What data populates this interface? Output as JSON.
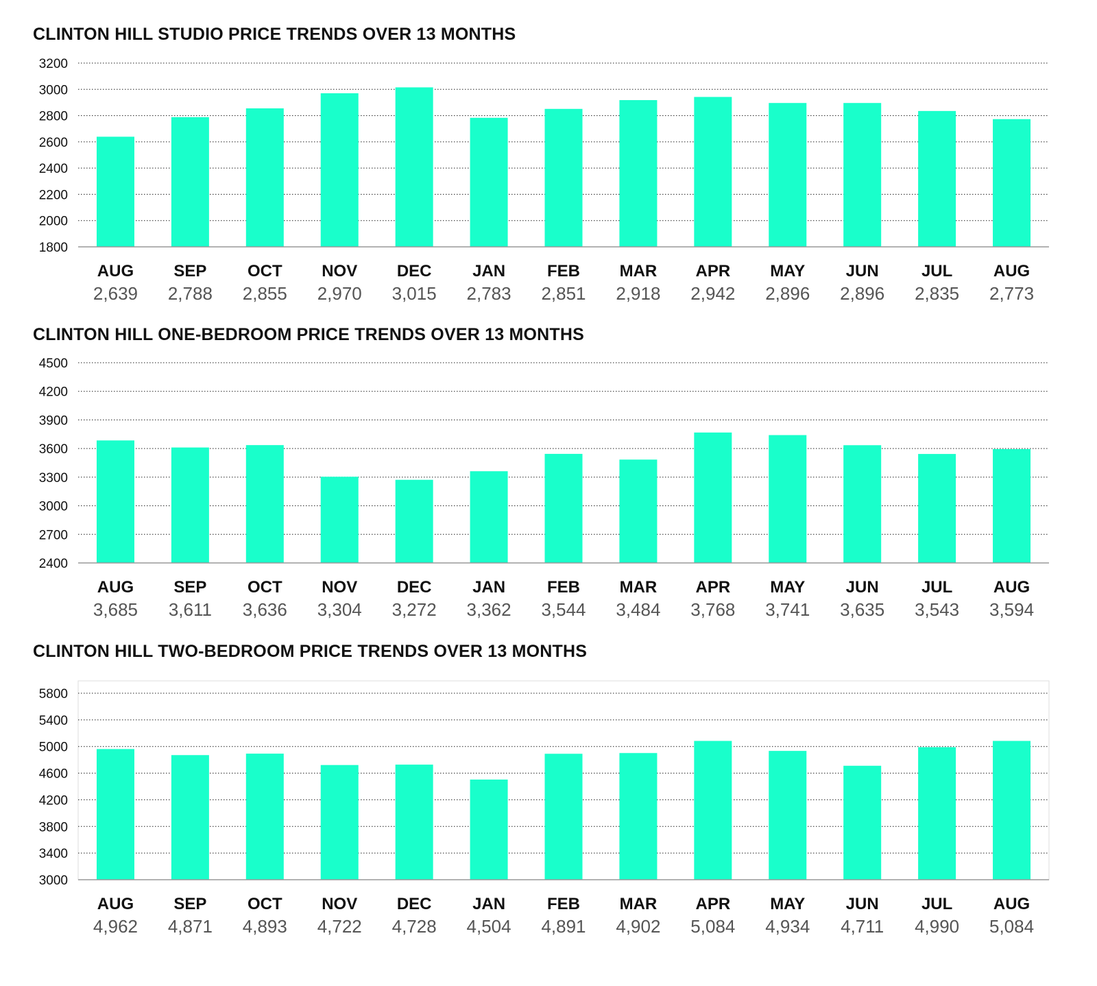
{
  "colors": {
    "bar": "#19FFCB",
    "grid": "#222222",
    "axis": "#999999",
    "frame": "#dddddd"
  },
  "chart_data": [
    {
      "type": "bar",
      "title": "CLINTON HILL STUDIO PRICE TRENDS OVER 13 MONTHS",
      "xlabel": "",
      "ylabel": "",
      "ylim": [
        1800,
        3200
      ],
      "yticks": [
        1800,
        2000,
        2200,
        2400,
        2600,
        2800,
        3000,
        3200
      ],
      "categories": [
        "AUG",
        "SEP",
        "OCT",
        "NOV",
        "DEC",
        "JAN",
        "FEB",
        "MAR",
        "APR",
        "MAY",
        "JUN",
        "JUL",
        "AUG"
      ],
      "values": [
        2639,
        2788,
        2855,
        2970,
        3015,
        2783,
        2851,
        2918,
        2942,
        2896,
        2896,
        2835,
        2773
      ],
      "value_labels": [
        "2,639",
        "2,788",
        "2,855",
        "2,970",
        "3,015",
        "2,783",
        "2,851",
        "2,918",
        "2,942",
        "2,896",
        "2,896",
        "2,835",
        "2,773"
      ],
      "grid": true,
      "legend": "none"
    },
    {
      "type": "bar",
      "title": "CLINTON HILL ONE-BEDROOM PRICE TRENDS OVER 13 MONTHS",
      "xlabel": "",
      "ylabel": "",
      "ylim": [
        2400,
        4500
      ],
      "yticks": [
        2400,
        2700,
        3000,
        3300,
        3600,
        3900,
        4200,
        4500
      ],
      "categories": [
        "AUG",
        "SEP",
        "OCT",
        "NOV",
        "DEC",
        "JAN",
        "FEB",
        "MAR",
        "APR",
        "MAY",
        "JUN",
        "JUL",
        "AUG"
      ],
      "values": [
        3685,
        3611,
        3636,
        3304,
        3272,
        3362,
        3544,
        3484,
        3768,
        3741,
        3635,
        3543,
        3594
      ],
      "value_labels": [
        "3,685",
        "3,611",
        "3,636",
        "3,304",
        "3,272",
        "3,362",
        "3,544",
        "3,484",
        "3,768",
        "3,741",
        "3,635",
        "3,543",
        "3,594"
      ],
      "grid": true,
      "legend": "none"
    },
    {
      "type": "bar",
      "title": "CLINTON HILL TWO-BEDROOM PRICE TRENDS OVER 13 MONTHS",
      "xlabel": "",
      "ylabel": "",
      "ylim": [
        3000,
        5800
      ],
      "yticks": [
        3000,
        3400,
        3800,
        4200,
        4600,
        5000,
        5400,
        5800
      ],
      "categories": [
        "AUG",
        "SEP",
        "OCT",
        "NOV",
        "DEC",
        "JAN",
        "FEB",
        "MAR",
        "APR",
        "MAY",
        "JUN",
        "JUL",
        "AUG"
      ],
      "values": [
        4962,
        4871,
        4893,
        4722,
        4728,
        4504,
        4891,
        4902,
        5084,
        4934,
        4711,
        4990,
        5084
      ],
      "value_labels": [
        "4,962",
        "4,871",
        "4,893",
        "4,722",
        "4,728",
        "4,504",
        "4,891",
        "4,902",
        "5,084",
        "4,934",
        "4,711",
        "4,990",
        "5,084"
      ],
      "grid": true,
      "legend": "none"
    }
  ]
}
